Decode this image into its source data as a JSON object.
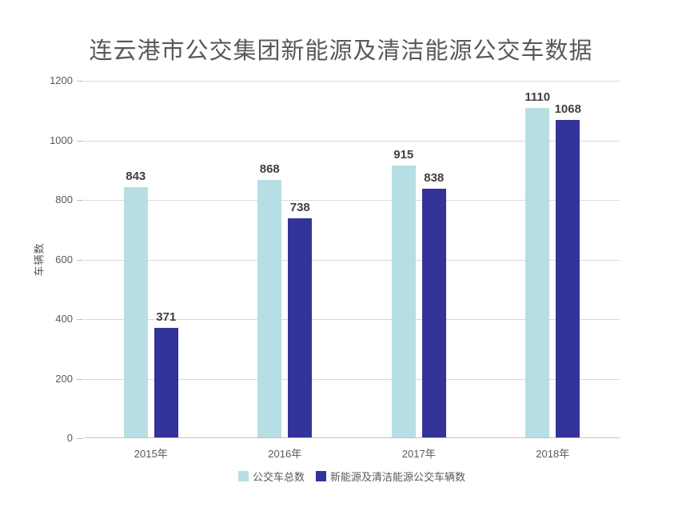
{
  "colors": {
    "series_total": "#b7dee3",
    "series_new_energy": "#333399",
    "gridline": "#d9d9d9",
    "axis_line": "#c2c2c2",
    "axis_text": "#595959",
    "data_label": "#404040",
    "title_text": "#595959",
    "background": "#ffffff"
  },
  "chart_data": {
    "type": "bar",
    "title": "连云港市公交集团新能源及清洁能源公交车数据",
    "xlabel": "",
    "ylabel": "车辆数",
    "categories": [
      "2015年",
      "2016年",
      "2017年",
      "2018年"
    ],
    "series": [
      {
        "name": "公交车总数",
        "color": "#b7dee3",
        "values": [
          843,
          868,
          915,
          1110
        ]
      },
      {
        "name": "新能源及清洁能源公交车辆数",
        "color": "#333399",
        "values": [
          371,
          738,
          838,
          1068
        ]
      }
    ],
    "ylim": [
      0,
      1200
    ],
    "yticks": [
      0,
      200,
      400,
      600,
      800,
      1000,
      1200
    ],
    "grid": true,
    "data_labels": true,
    "legend_position": "bottom"
  }
}
